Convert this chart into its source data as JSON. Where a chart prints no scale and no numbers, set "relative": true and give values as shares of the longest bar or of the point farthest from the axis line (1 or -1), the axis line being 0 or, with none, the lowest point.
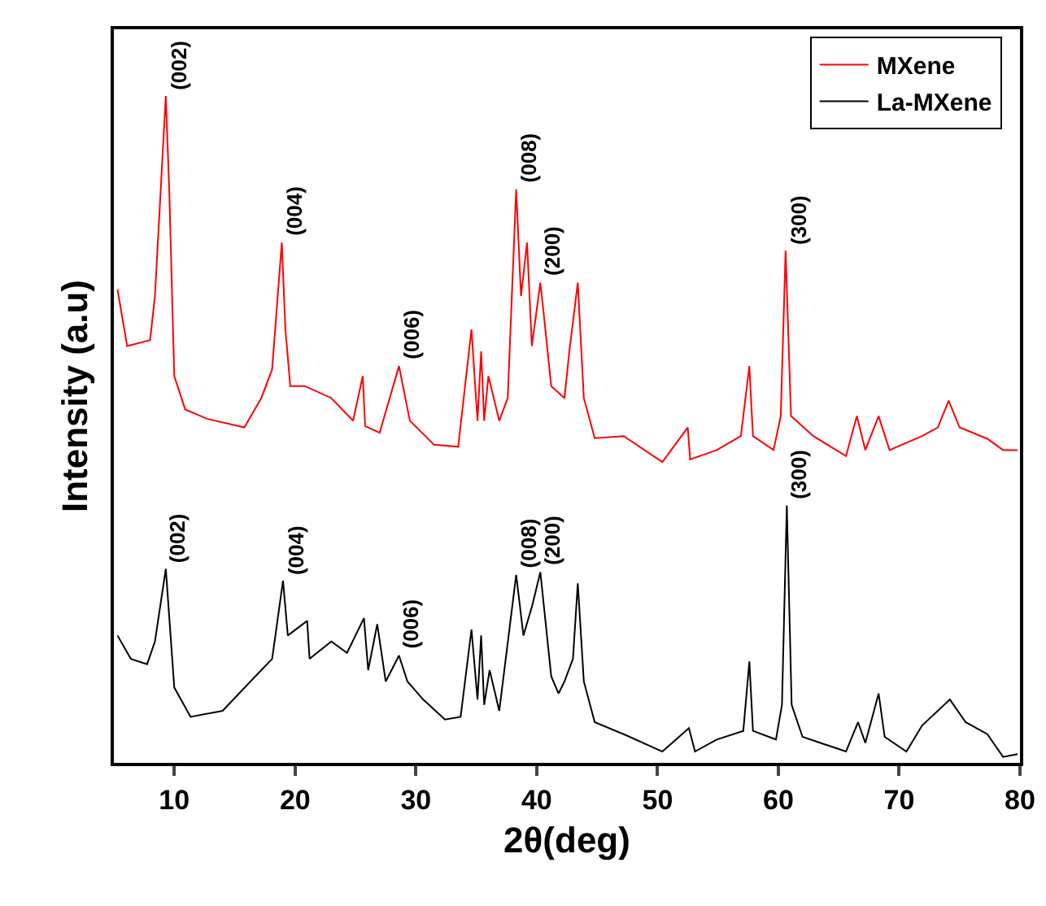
{
  "chart_data": {
    "type": "line",
    "relative": true,
    "xlabel": "2θ(deg)",
    "ylabel": "Intensity (a.u)",
    "xlim": [
      5,
      80
    ],
    "xticks": [
      10,
      20,
      30,
      40,
      50,
      60,
      70,
      80
    ],
    "legend": "top right",
    "grid": false,
    "marker": "none",
    "line_style": "solid",
    "series": [
      {
        "name": "MXene",
        "color": "#ff0000",
        "x": [
          5.3,
          6.1,
          8.0,
          8.4,
          9.3,
          9.6,
          10.0,
          10.9,
          12.7,
          15.8,
          17.2,
          18.1,
          18.9,
          19.2,
          19.6,
          20.8,
          23.0,
          24.8,
          25.6,
          25.8,
          27.0,
          28.6,
          29.5,
          31.5,
          33.5,
          34.6,
          35.1,
          35.4,
          35.65,
          36.0,
          36.9,
          37.6,
          38.3,
          38.7,
          39.2,
          39.6,
          40.3,
          40.6,
          41.2,
          42.3,
          42.7,
          43.4,
          43.9,
          44.8,
          47.2,
          50.4,
          52.5,
          52.7,
          54.9,
          56.9,
          57.6,
          57.9,
          59.6,
          60.2,
          60.6,
          61.05,
          62.9,
          65.6,
          66.5,
          67.2,
          68.3,
          69.2,
          71.9,
          73.2,
          74.1,
          75.0,
          77.3,
          78.6,
          79.8
        ],
        "values": [
          0.71,
          0.625,
          0.634,
          0.7,
          1.0,
          0.85,
          0.58,
          0.53,
          0.516,
          0.503,
          0.547,
          0.59,
          0.78,
          0.65,
          0.565,
          0.565,
          0.547,
          0.513,
          0.58,
          0.505,
          0.495,
          0.595,
          0.513,
          0.477,
          0.474,
          0.65,
          0.513,
          0.617,
          0.513,
          0.58,
          0.513,
          0.547,
          0.86,
          0.7,
          0.78,
          0.625,
          0.72,
          0.67,
          0.565,
          0.547,
          0.617,
          0.72,
          0.547,
          0.487,
          0.49,
          0.451,
          0.503,
          0.455,
          0.469,
          0.49,
          0.595,
          0.49,
          0.469,
          0.52,
          0.768,
          0.52,
          0.49,
          0.46,
          0.52,
          0.469,
          0.52,
          0.469,
          0.49,
          0.503,
          0.543,
          0.503,
          0.486,
          0.469,
          0.469
        ]
      },
      {
        "name": "La-MXene",
        "color": "#000000",
        "x": [
          5.3,
          6.4,
          7.75,
          8.4,
          9.3,
          10.0,
          11.35,
          14.0,
          16.3,
          18.1,
          19.0,
          19.4,
          21.0,
          21.2,
          23.0,
          24.3,
          25.7,
          26.05,
          26.8,
          27.5,
          28.6,
          29.3,
          30.6,
          32.4,
          33.7,
          34.6,
          35.1,
          35.4,
          35.65,
          36.1,
          36.9,
          38.3,
          38.9,
          39.6,
          40.3,
          41.2,
          41.8,
          42.3,
          43.0,
          43.4,
          43.9,
          44.8,
          47.2,
          50.4,
          52.6,
          53.1,
          54.9,
          57.1,
          57.6,
          57.9,
          59.8,
          60.3,
          60.7,
          61.1,
          62.0,
          65.6,
          66.6,
          67.2,
          68.3,
          68.8,
          70.6,
          71.9,
          74.2,
          75.5,
          77.3,
          78.6,
          79.8
        ],
        "values": [
          0.191,
          0.156,
          0.148,
          0.182,
          0.291,
          0.113,
          0.069,
          0.078,
          0.122,
          0.156,
          0.273,
          0.191,
          0.213,
          0.156,
          0.182,
          0.165,
          0.217,
          0.139,
          0.208,
          0.122,
          0.161,
          0.122,
          0.095,
          0.065,
          0.069,
          0.2,
          0.095,
          0.191,
          0.087,
          0.139,
          0.078,
          0.282,
          0.191,
          0.234,
          0.286,
          0.13,
          0.104,
          0.122,
          0.156,
          0.269,
          0.122,
          0.061,
          0.043,
          0.017,
          0.052,
          0.017,
          0.035,
          0.048,
          0.152,
          0.048,
          0.035,
          0.087,
          0.386,
          0.087,
          0.039,
          0.017,
          0.061,
          0.03,
          0.104,
          0.039,
          0.017,
          0.056,
          0.095,
          0.061,
          0.043,
          0.009,
          0.013
        ]
      }
    ],
    "annotations": [
      {
        "text": "(002)",
        "x": 9.3,
        "y": 1.0
      },
      {
        "text": "(004)",
        "x": 18.9,
        "y": 0.78
      },
      {
        "text": "(006)",
        "x": 28.6,
        "y": 0.595
      },
      {
        "text": "(008)",
        "x": 38.3,
        "y": 0.86
      },
      {
        "text": "(200)",
        "x": 40.3,
        "y": 0.72
      },
      {
        "text": "(300)",
        "x": 60.6,
        "y": 0.768
      },
      {
        "text": "(002)",
        "x": 9.3,
        "y": 0.291
      },
      {
        "text": "(004)",
        "x": 19.0,
        "y": 0.273
      },
      {
        "text": "(006)",
        "x": 28.6,
        "y": 0.161
      },
      {
        "text": "(008)",
        "x": 38.3,
        "y": 0.282
      },
      {
        "text": "(200)",
        "x": 40.3,
        "y": 0.286
      },
      {
        "text": "(300)",
        "x": 60.7,
        "y": 0.386
      }
    ]
  }
}
